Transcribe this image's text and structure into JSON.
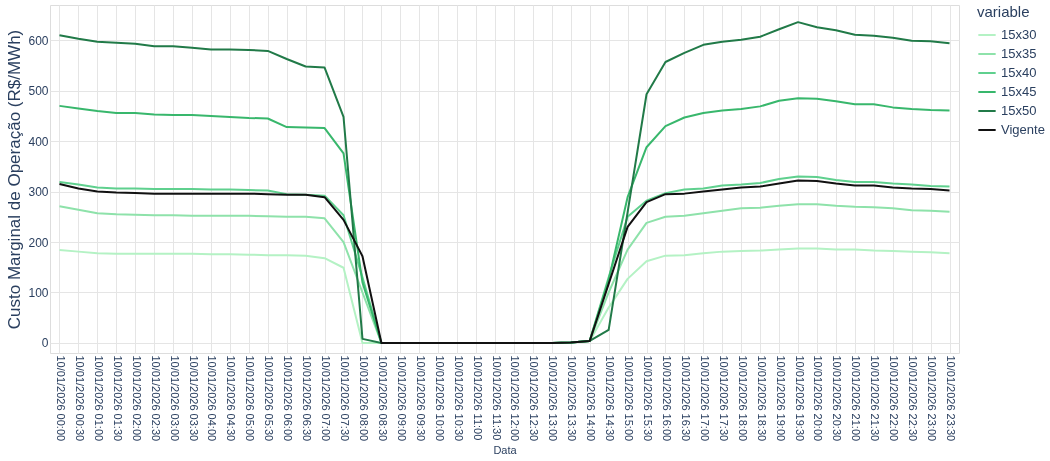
{
  "chart_data": {
    "type": "line",
    "xlabel": "Data",
    "ylabel": "Custo Marginal de Operação (R$/MWh)",
    "legend_title": "variable",
    "categories": [
      "10/01/2026 00:00",
      "10/01/2026 00:30",
      "10/01/2026 01:00",
      "10/01/2026 01:30",
      "10/01/2026 02:00",
      "10/01/2026 02:30",
      "10/01/2026 03:00",
      "10/01/2026 03:30",
      "10/01/2026 04:00",
      "10/01/2026 04:30",
      "10/01/2026 05:00",
      "10/01/2026 05:30",
      "10/01/2026 06:00",
      "10/01/2026 06:30",
      "10/01/2026 07:00",
      "10/01/2026 07:30",
      "10/01/2026 08:00",
      "10/01/2026 08:30",
      "10/01/2026 09:00",
      "10/01/2026 09:30",
      "10/01/2026 10:00",
      "10/01/2026 10:30",
      "10/01/2026 11:00",
      "10/01/2026 11:30",
      "10/01/2026 12:00",
      "10/01/2026 12:30",
      "10/01/2026 13:00",
      "10/01/2026 13:30",
      "10/01/2026 14:00",
      "10/01/2026 14:30",
      "10/01/2026 15:00",
      "10/01/2026 15:30",
      "10/01/2026 16:00",
      "10/01/2026 16:30",
      "10/01/2026 17:00",
      "10/01/2026 17:30",
      "10/01/2026 18:00",
      "10/01/2026 18:30",
      "10/01/2026 19:00",
      "10/01/2026 19:30",
      "10/01/2026 20:00",
      "10/01/2026 20:30",
      "10/01/2026 21:00",
      "10/01/2026 21:30",
      "10/01/2026 22:00",
      "10/01/2026 22:30",
      "10/01/2026 23:00",
      "10/01/2026 23:30"
    ],
    "series": [
      {
        "name": "15x30",
        "color": "#b4f2c4",
        "values": [
          184,
          181,
          178,
          177,
          177,
          177,
          177,
          177,
          176,
          176,
          175,
          174,
          174,
          173,
          168,
          149,
          0,
          0,
          0,
          0,
          0,
          0,
          0,
          0,
          0,
          0,
          0,
          1,
          4,
          70,
          127,
          162,
          173,
          174,
          178,
          181,
          182,
          183,
          185,
          187,
          187,
          185,
          185,
          183,
          182,
          181,
          180,
          178
        ]
      },
      {
        "name": "15x35",
        "color": "#8ee2aa",
        "values": [
          271,
          264,
          257,
          255,
          254,
          253,
          253,
          252,
          252,
          252,
          252,
          251,
          250,
          250,
          247,
          200,
          100,
          0,
          0,
          0,
          0,
          0,
          0,
          0,
          0,
          0,
          0,
          1,
          4,
          100,
          185,
          238,
          250,
          252,
          257,
          262,
          267,
          268,
          272,
          275,
          275,
          272,
          270,
          269,
          267,
          263,
          262,
          260
        ]
      },
      {
        "name": "15x40",
        "color": "#5fd08e",
        "values": [
          319,
          314,
          308,
          306,
          306,
          305,
          305,
          305,
          304,
          304,
          303,
          302,
          295,
          294,
          292,
          253,
          130,
          0,
          0,
          0,
          0,
          0,
          0,
          0,
          0,
          0,
          0,
          1,
          4,
          130,
          250,
          282,
          297,
          304,
          306,
          312,
          314,
          317,
          325,
          330,
          329,
          323,
          319,
          319,
          316,
          314,
          311,
          310
        ]
      },
      {
        "name": "15x45",
        "color": "#38b76c",
        "values": [
          470,
          465,
          460,
          456,
          456,
          453,
          452,
          452,
          450,
          448,
          446,
          445,
          428,
          427,
          426,
          376,
          120,
          0,
          0,
          0,
          0,
          0,
          0,
          0,
          0,
          0,
          0,
          1,
          4,
          125,
          289,
          388,
          430,
          447,
          456,
          461,
          464,
          469,
          480,
          485,
          484,
          479,
          473,
          473,
          467,
          464,
          462,
          461
        ]
      },
      {
        "name": "15x50",
        "color": "#217a48",
        "values": [
          610,
          603,
          597,
          595,
          593,
          588,
          588,
          585,
          582,
          582,
          581,
          579,
          563,
          548,
          546,
          448,
          8,
          0,
          0,
          0,
          0,
          0,
          0,
          0,
          0,
          0,
          0,
          1,
          4,
          26,
          259,
          493,
          557,
          575,
          591,
          597,
          601,
          607,
          622,
          636,
          626,
          620,
          611,
          609,
          605,
          599,
          598,
          594
        ]
      },
      {
        "name": "Vigente",
        "color": "#111111",
        "values": [
          315,
          306,
          300,
          298,
          297,
          296,
          296,
          296,
          296,
          296,
          296,
          295,
          294,
          294,
          289,
          244,
          172,
          0,
          0,
          0,
          0,
          0,
          0,
          0,
          0,
          0,
          0,
          1,
          4,
          117,
          230,
          279,
          295,
          296,
          300,
          304,
          308,
          310,
          316,
          322,
          321,
          316,
          312,
          312,
          308,
          306,
          305,
          302
        ]
      }
    ],
    "ylim": [
      -20,
      670
    ],
    "yticks": [
      0,
      100,
      200,
      300,
      400,
      500,
      600
    ],
    "grid": true,
    "legend": "top right",
    "line_style": "solid"
  }
}
